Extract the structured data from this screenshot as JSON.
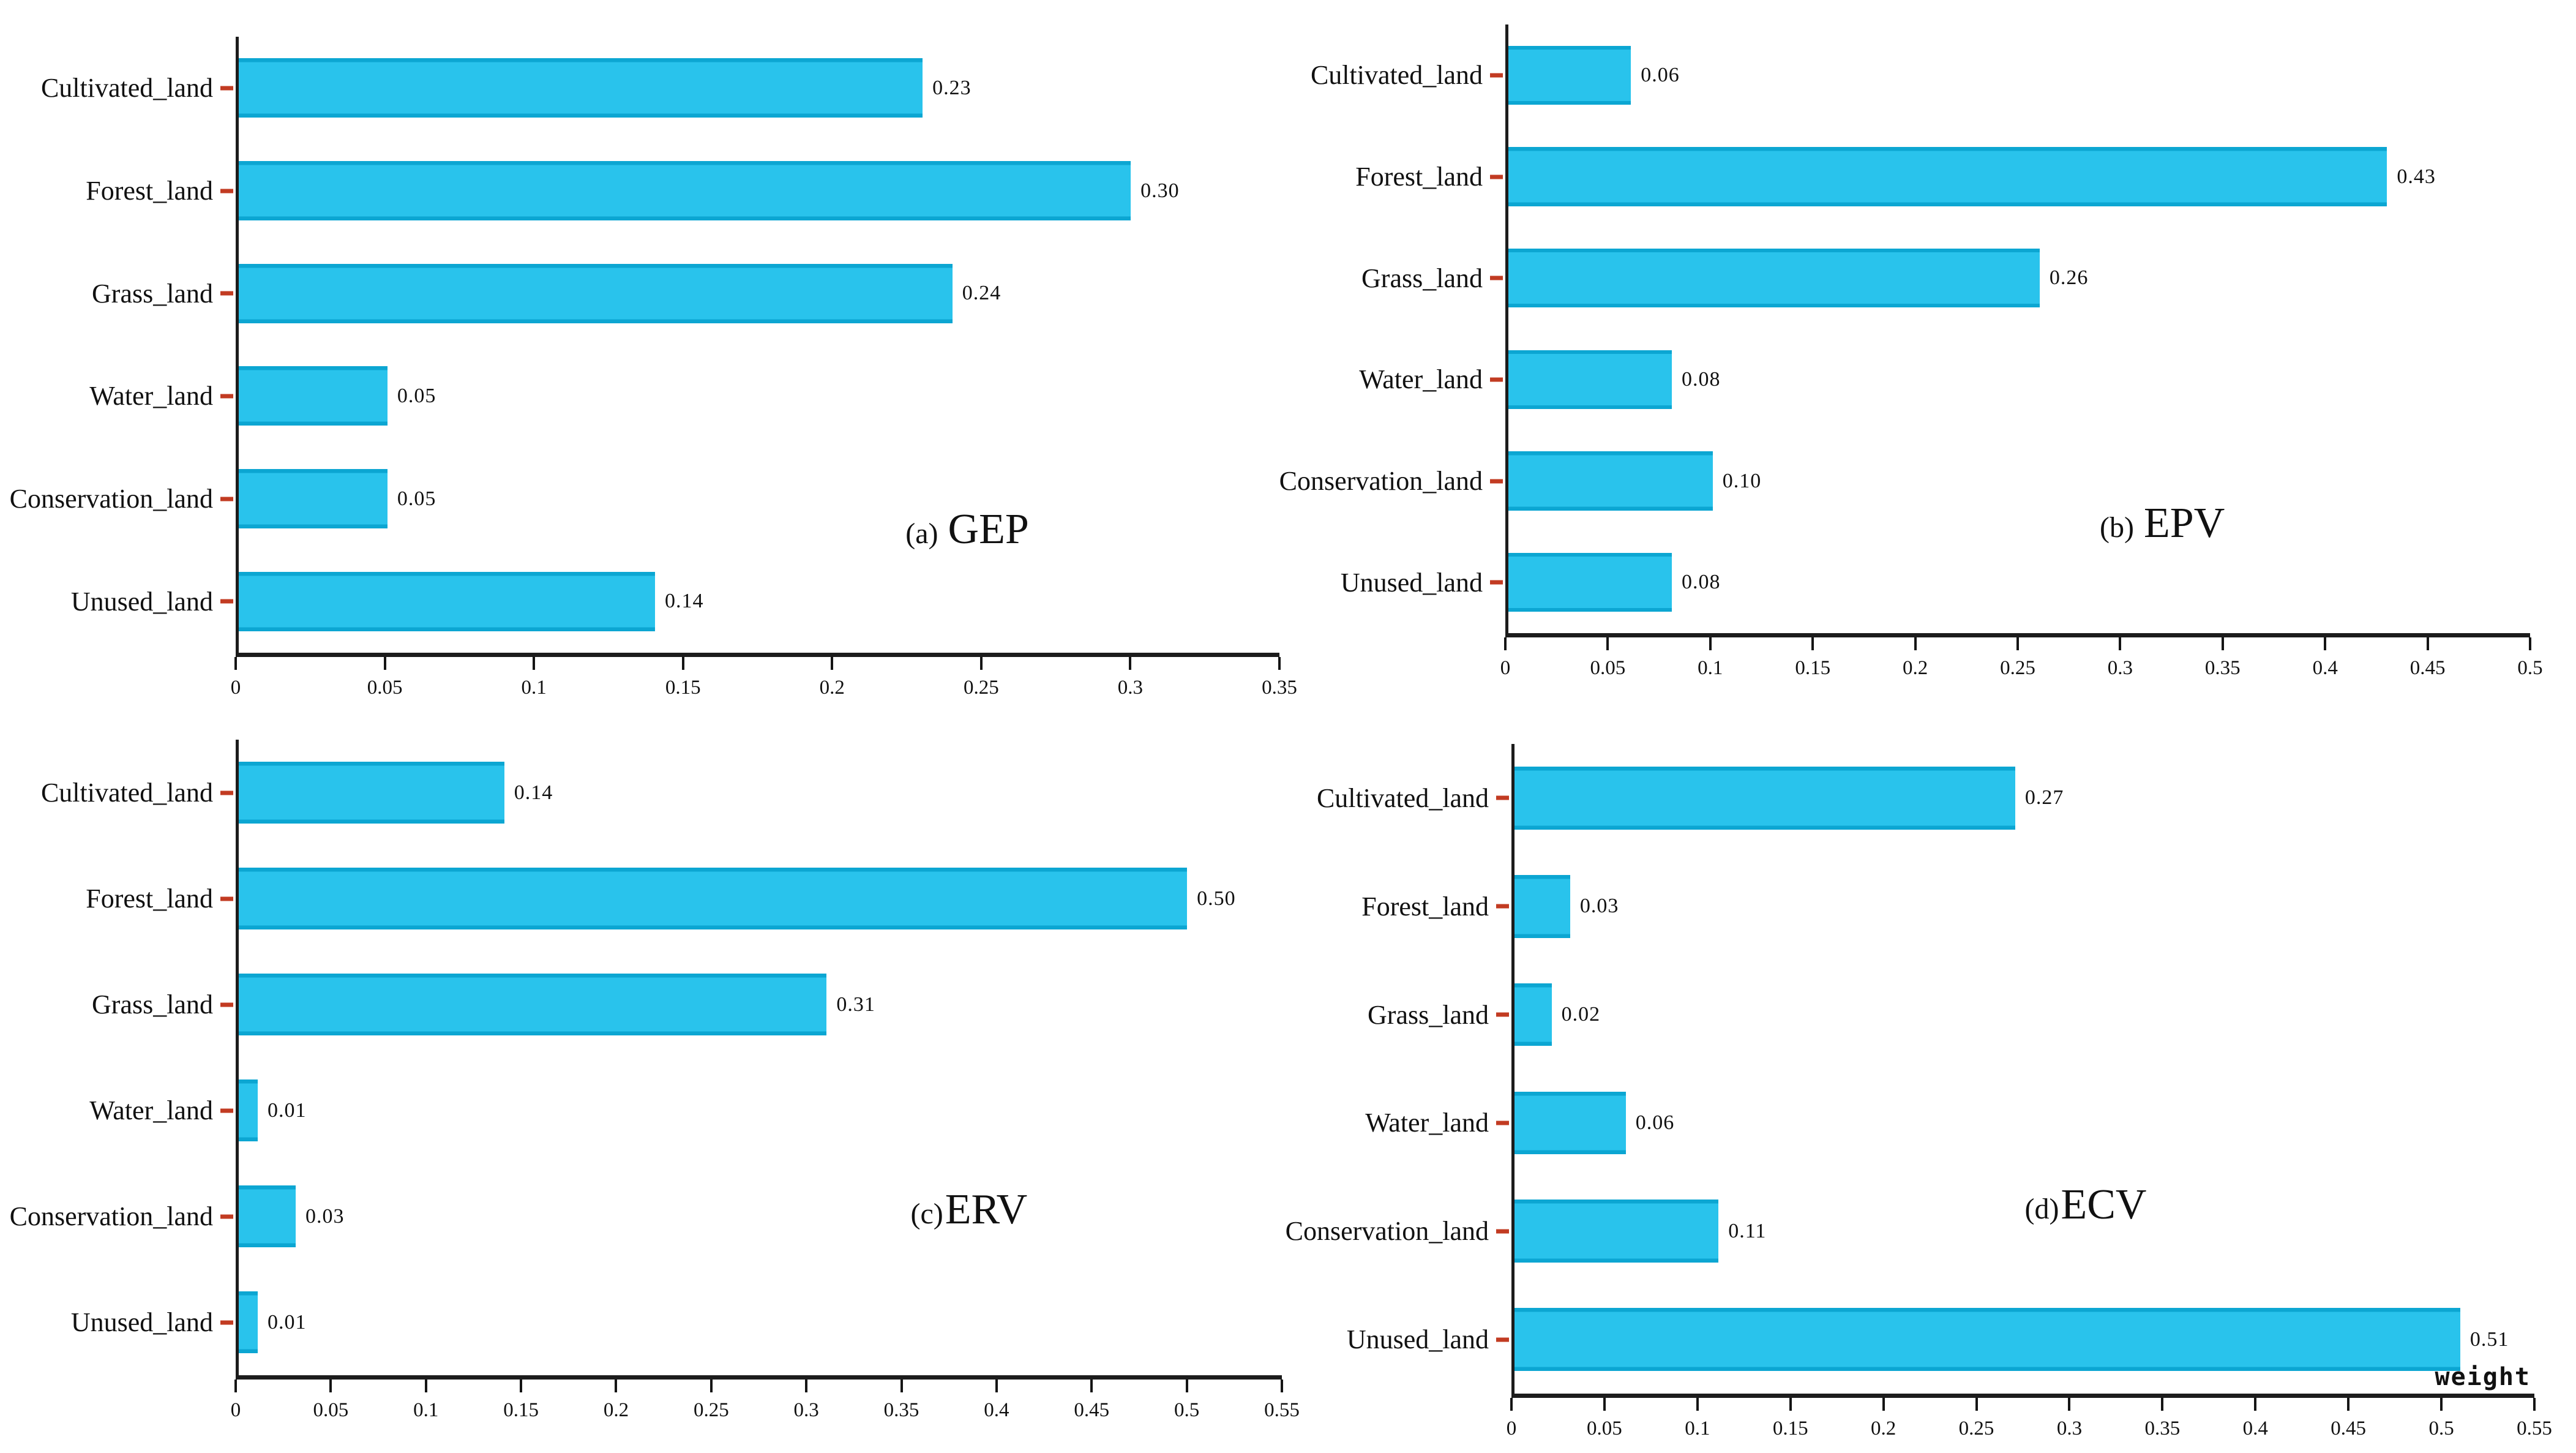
{
  "figure": {
    "background": "#ffffff",
    "colors": {
      "bar_fill": "#29c3ec",
      "bar_edge": "#0ca6d2",
      "axis": "#1c1c1c",
      "y_tick_dash": "#c23b22",
      "text": "#111111"
    }
  },
  "chart_data": [
    {
      "type": "bar",
      "orientation": "horizontal",
      "panel": "a",
      "title_prefix": "(a)",
      "title": "GEP",
      "categories": [
        "Cultivated_land",
        "Forest_land",
        "Grass_land",
        "Water_land",
        "Conservation_land",
        "Unused_land"
      ],
      "values": [
        0.23,
        0.3,
        0.24,
        0.05,
        0.05,
        0.14
      ],
      "value_labels": [
        "0.23",
        "0.30",
        "0.24",
        "0.05",
        "0.05",
        "0.14"
      ],
      "xlim": [
        0,
        0.35
      ],
      "xticks": [
        "0",
        "0.05",
        "0.1",
        "0.15",
        "0.2",
        "0.25",
        "0.3",
        "0.35"
      ],
      "xlabel": "",
      "grid": false,
      "legend": false
    },
    {
      "type": "bar",
      "orientation": "horizontal",
      "panel": "b",
      "title_prefix": "(b)",
      "title": "EPV",
      "categories": [
        "Cultivated_land",
        "Forest_land",
        "Grass_land",
        "Water_land",
        "Conservation_land",
        "Unused_land"
      ],
      "values": [
        0.06,
        0.43,
        0.26,
        0.08,
        0.1,
        0.08
      ],
      "value_labels": [
        "0.06",
        "0.43",
        "0.26",
        "0.08",
        "0.10",
        "0.08"
      ],
      "xlim": [
        0,
        0.5
      ],
      "xticks": [
        "0",
        "0.05",
        "0.1",
        "0.15",
        "0.2",
        "0.25",
        "0.3",
        "0.35",
        "0.4",
        "0.45",
        "0.5"
      ],
      "xlabel": "",
      "grid": false,
      "legend": false
    },
    {
      "type": "bar",
      "orientation": "horizontal",
      "panel": "c",
      "title_prefix": "(c)",
      "title": "ERV",
      "categories": [
        "Cultivated_land",
        "Forest_land",
        "Grass_land",
        "Water_land",
        "Conservation_land",
        "Unused_land"
      ],
      "values": [
        0.14,
        0.5,
        0.31,
        0.01,
        0.03,
        0.01
      ],
      "value_labels": [
        "0.14",
        "0.50",
        "0.31",
        "0.01",
        "0.03",
        "0.01"
      ],
      "xlim": [
        0,
        0.55
      ],
      "xticks": [
        "0",
        "0.05",
        "0.1",
        "0.15",
        "0.2",
        "0.25",
        "0.3",
        "0.35",
        "0.4",
        "0.45",
        "0.5",
        "0.55"
      ],
      "xlabel": "",
      "grid": false,
      "legend": false
    },
    {
      "type": "bar",
      "orientation": "horizontal",
      "panel": "d",
      "title_prefix": "(d)",
      "title": "ECV",
      "categories": [
        "Cultivated_land",
        "Forest_land",
        "Grass_land",
        "Water_land",
        "Conservation_land",
        "Unused_land"
      ],
      "values": [
        0.27,
        0.03,
        0.02,
        0.06,
        0.11,
        0.51
      ],
      "value_labels": [
        "0.27",
        "0.03",
        "0.02",
        "0.06",
        "0.11",
        "0.51"
      ],
      "xlim": [
        0,
        0.55
      ],
      "xticks": [
        "0",
        "0.05",
        "0.1",
        "0.15",
        "0.2",
        "0.25",
        "0.3",
        "0.35",
        "0.4",
        "0.45",
        "0.5",
        "0.55"
      ],
      "xlabel": "weight",
      "grid": false,
      "legend": false
    }
  ]
}
